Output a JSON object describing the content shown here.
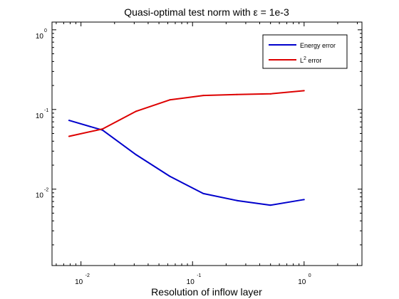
{
  "chart_data": {
    "type": "line",
    "title": "Quasi-optimal test norm with ε = 1e-3",
    "xlabel": "Resolution of inflow layer",
    "ylabel": "",
    "x_scale": "log",
    "y_scale": "log",
    "xlim": [
      0.0055,
      3.3
    ],
    "ylim": [
      0.0011,
      1.25
    ],
    "grid": false,
    "legend_position": "top-right",
    "x_ticks": [
      {
        "base": "10",
        "exp": "-2",
        "value": 0.01
      },
      {
        "base": "10",
        "exp": "-1",
        "value": 0.1
      },
      {
        "base": "10",
        "exp": "0",
        "value": 1
      }
    ],
    "y_ticks": [
      {
        "base": "10",
        "exp": "0",
        "value": 1
      },
      {
        "base": "10",
        "exp": "-1",
        "value": 0.1
      },
      {
        "base": "10",
        "exp": "-2",
        "value": 0.01
      }
    ],
    "series": [
      {
        "name": "Energy error",
        "legend_main": "Energy error",
        "legend_sup": "",
        "legend_suffix": "",
        "color": "#0000cc",
        "x": [
          0.0078125,
          0.015625,
          0.03125,
          0.0625,
          0.125,
          0.25,
          0.5,
          1.0
        ],
        "y": [
          0.073,
          0.055,
          0.027,
          0.0145,
          0.0088,
          0.0072,
          0.0063,
          0.0074
        ]
      },
      {
        "name": "L2 error",
        "legend_main": "L",
        "legend_sup": "2",
        "legend_suffix": " error",
        "color": "#dd0000",
        "x": [
          0.0078125,
          0.015625,
          0.03125,
          0.0625,
          0.125,
          0.25,
          0.5,
          1.0
        ],
        "y": [
          0.046,
          0.057,
          0.095,
          0.132,
          0.15,
          0.154,
          0.157,
          0.172
        ]
      }
    ]
  }
}
